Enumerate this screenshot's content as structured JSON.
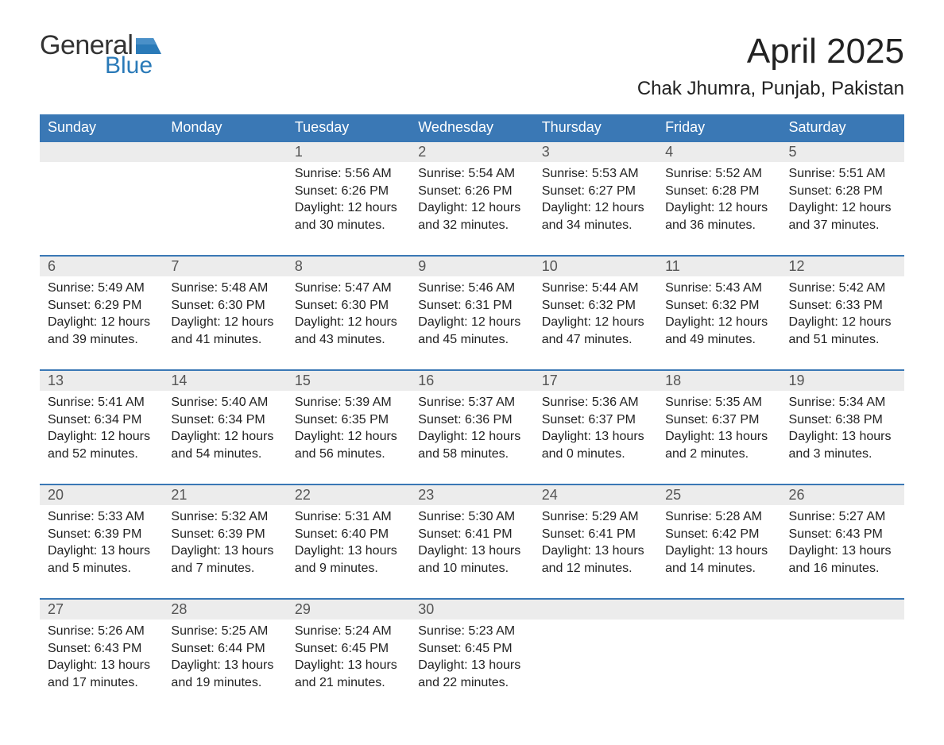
{
  "brand": {
    "general": "General",
    "blue": "Blue",
    "logo_color": "#2a7ab8",
    "text_color": "#333333"
  },
  "title": "April 2025",
  "location": "Chak Jhumra, Punjab, Pakistan",
  "colors": {
    "header_bg": "#3a78b5",
    "header_text": "#ffffff",
    "daynum_bg": "#ececec",
    "daynum_text": "#555555",
    "border": "#3a78b5",
    "body_text": "#222222",
    "page_bg": "#ffffff"
  },
  "day_headers": [
    "Sunday",
    "Monday",
    "Tuesday",
    "Wednesday",
    "Thursday",
    "Friday",
    "Saturday"
  ],
  "weeks": [
    {
      "days": [
        {
          "num": "",
          "sunrise": "",
          "sunset": "",
          "daylight": ""
        },
        {
          "num": "",
          "sunrise": "",
          "sunset": "",
          "daylight": ""
        },
        {
          "num": "1",
          "sunrise": "Sunrise: 5:56 AM",
          "sunset": "Sunset: 6:26 PM",
          "daylight": "Daylight: 12 hours and 30 minutes."
        },
        {
          "num": "2",
          "sunrise": "Sunrise: 5:54 AM",
          "sunset": "Sunset: 6:26 PM",
          "daylight": "Daylight: 12 hours and 32 minutes."
        },
        {
          "num": "3",
          "sunrise": "Sunrise: 5:53 AM",
          "sunset": "Sunset: 6:27 PM",
          "daylight": "Daylight: 12 hours and 34 minutes."
        },
        {
          "num": "4",
          "sunrise": "Sunrise: 5:52 AM",
          "sunset": "Sunset: 6:28 PM",
          "daylight": "Daylight: 12 hours and 36 minutes."
        },
        {
          "num": "5",
          "sunrise": "Sunrise: 5:51 AM",
          "sunset": "Sunset: 6:28 PM",
          "daylight": "Daylight: 12 hours and 37 minutes."
        }
      ]
    },
    {
      "days": [
        {
          "num": "6",
          "sunrise": "Sunrise: 5:49 AM",
          "sunset": "Sunset: 6:29 PM",
          "daylight": "Daylight: 12 hours and 39 minutes."
        },
        {
          "num": "7",
          "sunrise": "Sunrise: 5:48 AM",
          "sunset": "Sunset: 6:30 PM",
          "daylight": "Daylight: 12 hours and 41 minutes."
        },
        {
          "num": "8",
          "sunrise": "Sunrise: 5:47 AM",
          "sunset": "Sunset: 6:30 PM",
          "daylight": "Daylight: 12 hours and 43 minutes."
        },
        {
          "num": "9",
          "sunrise": "Sunrise: 5:46 AM",
          "sunset": "Sunset: 6:31 PM",
          "daylight": "Daylight: 12 hours and 45 minutes."
        },
        {
          "num": "10",
          "sunrise": "Sunrise: 5:44 AM",
          "sunset": "Sunset: 6:32 PM",
          "daylight": "Daylight: 12 hours and 47 minutes."
        },
        {
          "num": "11",
          "sunrise": "Sunrise: 5:43 AM",
          "sunset": "Sunset: 6:32 PM",
          "daylight": "Daylight: 12 hours and 49 minutes."
        },
        {
          "num": "12",
          "sunrise": "Sunrise: 5:42 AM",
          "sunset": "Sunset: 6:33 PM",
          "daylight": "Daylight: 12 hours and 51 minutes."
        }
      ]
    },
    {
      "days": [
        {
          "num": "13",
          "sunrise": "Sunrise: 5:41 AM",
          "sunset": "Sunset: 6:34 PM",
          "daylight": "Daylight: 12 hours and 52 minutes."
        },
        {
          "num": "14",
          "sunrise": "Sunrise: 5:40 AM",
          "sunset": "Sunset: 6:34 PM",
          "daylight": "Daylight: 12 hours and 54 minutes."
        },
        {
          "num": "15",
          "sunrise": "Sunrise: 5:39 AM",
          "sunset": "Sunset: 6:35 PM",
          "daylight": "Daylight: 12 hours and 56 minutes."
        },
        {
          "num": "16",
          "sunrise": "Sunrise: 5:37 AM",
          "sunset": "Sunset: 6:36 PM",
          "daylight": "Daylight: 12 hours and 58 minutes."
        },
        {
          "num": "17",
          "sunrise": "Sunrise: 5:36 AM",
          "sunset": "Sunset: 6:37 PM",
          "daylight": "Daylight: 13 hours and 0 minutes."
        },
        {
          "num": "18",
          "sunrise": "Sunrise: 5:35 AM",
          "sunset": "Sunset: 6:37 PM",
          "daylight": "Daylight: 13 hours and 2 minutes."
        },
        {
          "num": "19",
          "sunrise": "Sunrise: 5:34 AM",
          "sunset": "Sunset: 6:38 PM",
          "daylight": "Daylight: 13 hours and 3 minutes."
        }
      ]
    },
    {
      "days": [
        {
          "num": "20",
          "sunrise": "Sunrise: 5:33 AM",
          "sunset": "Sunset: 6:39 PM",
          "daylight": "Daylight: 13 hours and 5 minutes."
        },
        {
          "num": "21",
          "sunrise": "Sunrise: 5:32 AM",
          "sunset": "Sunset: 6:39 PM",
          "daylight": "Daylight: 13 hours and 7 minutes."
        },
        {
          "num": "22",
          "sunrise": "Sunrise: 5:31 AM",
          "sunset": "Sunset: 6:40 PM",
          "daylight": "Daylight: 13 hours and 9 minutes."
        },
        {
          "num": "23",
          "sunrise": "Sunrise: 5:30 AM",
          "sunset": "Sunset: 6:41 PM",
          "daylight": "Daylight: 13 hours and 10 minutes."
        },
        {
          "num": "24",
          "sunrise": "Sunrise: 5:29 AM",
          "sunset": "Sunset: 6:41 PM",
          "daylight": "Daylight: 13 hours and 12 minutes."
        },
        {
          "num": "25",
          "sunrise": "Sunrise: 5:28 AM",
          "sunset": "Sunset: 6:42 PM",
          "daylight": "Daylight: 13 hours and 14 minutes."
        },
        {
          "num": "26",
          "sunrise": "Sunrise: 5:27 AM",
          "sunset": "Sunset: 6:43 PM",
          "daylight": "Daylight: 13 hours and 16 minutes."
        }
      ]
    },
    {
      "days": [
        {
          "num": "27",
          "sunrise": "Sunrise: 5:26 AM",
          "sunset": "Sunset: 6:43 PM",
          "daylight": "Daylight: 13 hours and 17 minutes."
        },
        {
          "num": "28",
          "sunrise": "Sunrise: 5:25 AM",
          "sunset": "Sunset: 6:44 PM",
          "daylight": "Daylight: 13 hours and 19 minutes."
        },
        {
          "num": "29",
          "sunrise": "Sunrise: 5:24 AM",
          "sunset": "Sunset: 6:45 PM",
          "daylight": "Daylight: 13 hours and 21 minutes."
        },
        {
          "num": "30",
          "sunrise": "Sunrise: 5:23 AM",
          "sunset": "Sunset: 6:45 PM",
          "daylight": "Daylight: 13 hours and 22 minutes."
        },
        {
          "num": "",
          "sunrise": "",
          "sunset": "",
          "daylight": ""
        },
        {
          "num": "",
          "sunrise": "",
          "sunset": "",
          "daylight": ""
        },
        {
          "num": "",
          "sunrise": "",
          "sunset": "",
          "daylight": ""
        }
      ]
    }
  ]
}
